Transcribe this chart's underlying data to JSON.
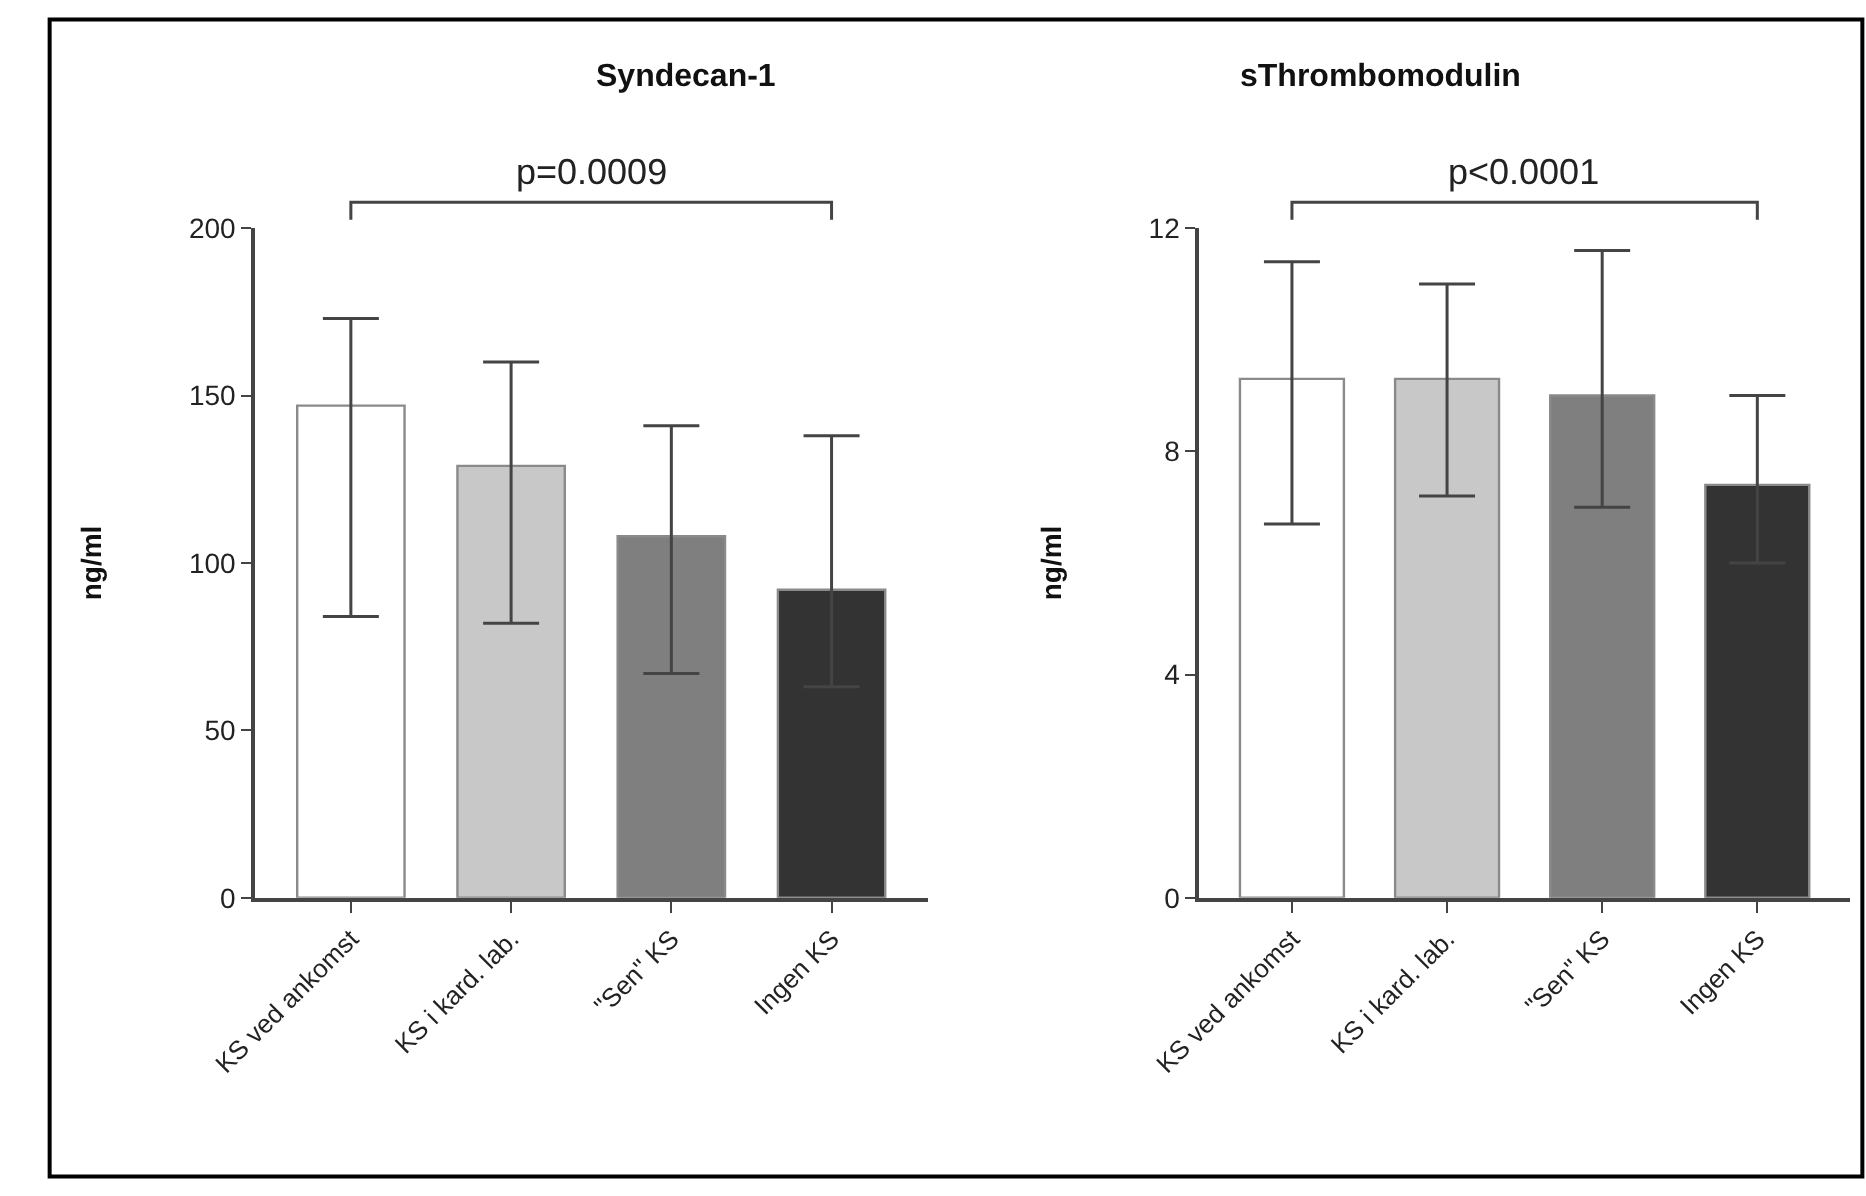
{
  "chart_data": [
    {
      "type": "bar",
      "title": "Syndecan-1",
      "ylabel": "ng/ml",
      "categories": [
        "KS ved ankomst",
        "KS i kard. lab.",
        "\"Sen\" KS",
        "Ingen KS"
      ],
      "values": [
        147,
        129,
        108,
        92
      ],
      "errors": [
        [
          84,
          173
        ],
        [
          82,
          160
        ],
        [
          67,
          141
        ],
        [
          63,
          138
        ]
      ],
      "colors": [
        "#ffffff",
        "#c8c8c8",
        "#7f7f7f",
        "#333333"
      ],
      "ylim": [
        0,
        200
      ],
      "yticks": [
        0,
        50,
        100,
        150,
        200
      ],
      "annotations": [
        "p=0.0009"
      ]
    },
    {
      "type": "bar",
      "title": "sThrombomodulin",
      "ylabel": "ng/ml",
      "categories": [
        "KS ved ankomst",
        "KS i kard. lab.",
        "\"Sen\" KS",
        "Ingen KS"
      ],
      "values": [
        9.3,
        9.3,
        9.0,
        7.4
      ],
      "errors": [
        [
          6.7,
          11.4
        ],
        [
          7.2,
          11.0
        ],
        [
          7.0,
          11.6
        ],
        [
          6.0,
          9.0
        ]
      ],
      "colors": [
        "#ffffff",
        "#c8c8c8",
        "#7f7f7f",
        "#333333"
      ],
      "ylim": [
        0,
        12
      ],
      "yticks": [
        0,
        4,
        8,
        12
      ],
      "annotations": [
        "p<0.0001"
      ]
    }
  ]
}
